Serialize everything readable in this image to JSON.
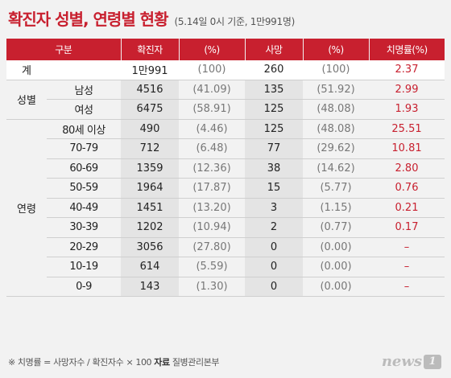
{
  "header": {
    "title": "확진자 성별, 연령별 현황",
    "subtitle": "(5.14일 0시 기준, 1만991명)"
  },
  "table": {
    "columns": [
      "구분",
      "",
      "확진자",
      "(%)",
      "사망",
      "(%)",
      "치명률(%)"
    ],
    "total": {
      "label": "계",
      "cases": "1만991",
      "cases_pct": "(100)",
      "deaths": "260",
      "deaths_pct": "(100)",
      "rate": "2.37"
    },
    "gender": {
      "label": "성별",
      "rows": [
        {
          "label": "남성",
          "cases": "4516",
          "cases_pct": "(41.09)",
          "deaths": "135",
          "deaths_pct": "(51.92)",
          "rate": "2.99"
        },
        {
          "label": "여성",
          "cases": "6475",
          "cases_pct": "(58.91)",
          "deaths": "125",
          "deaths_pct": "(48.08)",
          "rate": "1.93"
        }
      ]
    },
    "age": {
      "label": "연령",
      "rows": [
        {
          "label": "80세 이상",
          "cases": "490",
          "cases_pct": "(4.46)",
          "deaths": "125",
          "deaths_pct": "(48.08)",
          "rate": "25.51"
        },
        {
          "label": "70-79",
          "cases": "712",
          "cases_pct": "(6.48)",
          "deaths": "77",
          "deaths_pct": "(29.62)",
          "rate": "10.81"
        },
        {
          "label": "60-69",
          "cases": "1359",
          "cases_pct": "(12.36)",
          "deaths": "38",
          "deaths_pct": "(14.62)",
          "rate": "2.80"
        },
        {
          "label": "50-59",
          "cases": "1964",
          "cases_pct": "(17.87)",
          "deaths": "15",
          "deaths_pct": "(5.77)",
          "rate": "0.76"
        },
        {
          "label": "40-49",
          "cases": "1451",
          "cases_pct": "(13.20)",
          "deaths": "3",
          "deaths_pct": "(1.15)",
          "rate": "0.21"
        },
        {
          "label": "30-39",
          "cases": "1202",
          "cases_pct": "(10.94)",
          "deaths": "2",
          "deaths_pct": "(0.77)",
          "rate": "0.17"
        },
        {
          "label": "20-29",
          "cases": "3056",
          "cases_pct": "(27.80)",
          "deaths": "0",
          "deaths_pct": "(0.00)",
          "rate": "–"
        },
        {
          "label": "10-19",
          "cases": "614",
          "cases_pct": "(5.59)",
          "deaths": "0",
          "deaths_pct": "(0.00)",
          "rate": "–"
        },
        {
          "label": "0-9",
          "cases": "143",
          "cases_pct": "(1.30)",
          "deaths": "0",
          "deaths_pct": "(0.00)",
          "rate": "–"
        }
      ]
    }
  },
  "footer": {
    "note": "※ 치명률 = 사망자수 / 확진자수 × 100",
    "source_label": "자료",
    "source": "질병관리본부"
  },
  "logo": {
    "text": "news",
    "badge": "1"
  }
}
